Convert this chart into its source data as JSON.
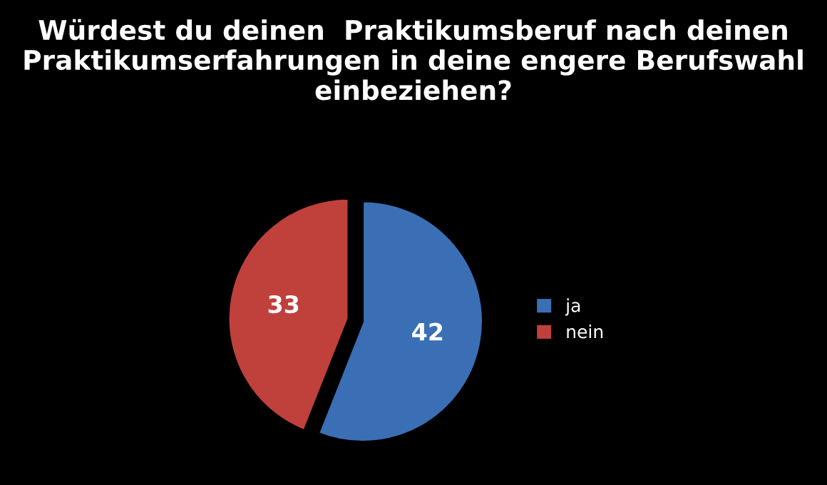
{
  "chart_data": {
    "type": "pie",
    "title": "Würdest du deinen  Praktikumsberuf nach deinen Praktikumserfahrungen in deine engere Berufswahl einbeziehen?",
    "categories": [
      "ja",
      "nein"
    ],
    "values": [
      42,
      33
    ],
    "colors": [
      "#3a6fb5",
      "#c0403c"
    ],
    "data_labels": true,
    "legend": "right"
  }
}
